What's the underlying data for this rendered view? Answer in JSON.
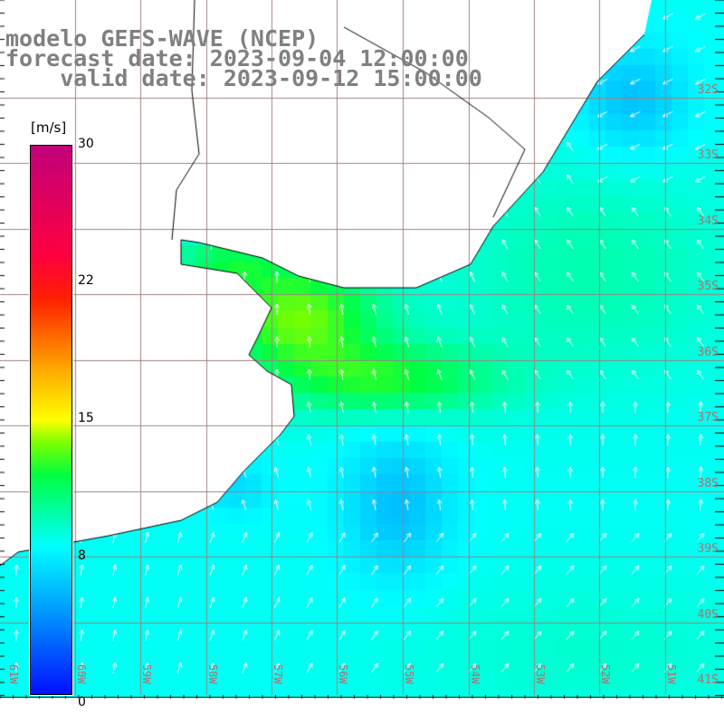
{
  "title": {
    "line1": "modelo GEFS-WAVE (NCEP)",
    "line2": "forecast date: 2023-09-04 12:00:00",
    "line3": "    valid date: 2023-09-12 15:00:00"
  },
  "colorbar": {
    "unit": "[m/s]",
    "ticks": [
      "30",
      "22",
      "15",
      "8",
      "0"
    ],
    "colors": [
      "#0010ff",
      "#00ffff",
      "#00ff40",
      "#ffff00",
      "#ff2000",
      "#c0007a"
    ]
  },
  "lat_labels": [
    "32S",
    "33S",
    "34S",
    "35S",
    "36S",
    "37S",
    "38S",
    "39S",
    "40S",
    "41S"
  ],
  "lon_labels": [
    "61W",
    "60W",
    "59W",
    "58W",
    "57W",
    "56W",
    "55W",
    "54W",
    "53W",
    "52W",
    "51W"
  ],
  "colors": {
    "land": "#ffffff",
    "grid": "#a08080",
    "coast": "#000000",
    "arrow": "#ffffff"
  }
}
